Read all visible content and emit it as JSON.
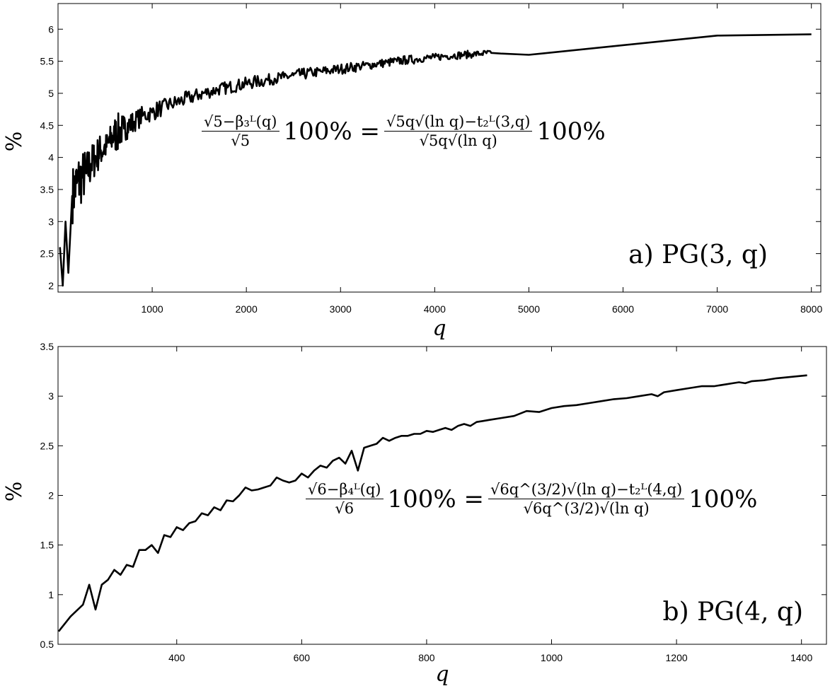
{
  "chart_data": [
    {
      "type": "line",
      "panel_label": "a) PG(3, q)",
      "xlabel": "q",
      "ylabel": "%",
      "xlim": [
        0,
        8100
      ],
      "ylim": [
        1.9,
        6.4
      ],
      "xticks": [
        1000,
        2000,
        3000,
        4000,
        5000,
        6000,
        7000,
        8000
      ],
      "yticks": [
        2,
        2.5,
        3,
        3.5,
        4,
        4.5,
        5,
        5.5,
        6
      ],
      "grid": false,
      "formula": {
        "lhs_num": "√5−β₃ᴸ(q)",
        "lhs_den": "√5",
        "lhs_tail": "100% =",
        "rhs_num": "√5q√(ln q)−t₂ᴸ(3,q)",
        "rhs_den": "√5q√(ln q)",
        "rhs_tail": "100%"
      },
      "series": [
        {
          "x": [
            20,
            50,
            80,
            110,
            150,
            200,
            250,
            300,
            350,
            400,
            450,
            500,
            550,
            600,
            650,
            700,
            750,
            800,
            900,
            1000,
            1100,
            1200,
            1300,
            1400,
            1500,
            1600,
            1700,
            1800,
            1900,
            2000,
            2100,
            2200,
            2300,
            2400,
            2500,
            2600,
            2700,
            2800,
            2900,
            3000,
            3100,
            3200,
            3300,
            3400,
            3500,
            3600,
            3700,
            3800,
            3900,
            4000,
            4100,
            4200,
            4300,
            4400,
            4500,
            4600,
            4700,
            5000,
            7000,
            8000
          ],
          "y": [
            2.6,
            2.0,
            3.0,
            2.2,
            3.4,
            3.6,
            3.7,
            3.75,
            3.9,
            4.0,
            4.1,
            4.15,
            4.25,
            4.35,
            4.4,
            4.45,
            4.5,
            4.55,
            4.65,
            4.7,
            4.78,
            4.83,
            4.88,
            4.93,
            4.98,
            5.02,
            5.06,
            5.09,
            5.12,
            5.15,
            5.18,
            5.2,
            5.23,
            5.25,
            5.28,
            5.3,
            5.32,
            5.34,
            5.36,
            5.38,
            5.4,
            5.42,
            5.44,
            5.46,
            5.48,
            5.5,
            5.52,
            5.53,
            5.55,
            5.56,
            5.58,
            5.59,
            5.6,
            5.61,
            5.62,
            5.63,
            5.62,
            5.6,
            5.9,
            5.92
          ],
          "noise": [
            0,
            0,
            0,
            0,
            0.45,
            0.45,
            0.4,
            0.35,
            0.3,
            0.28,
            0.25,
            0.22,
            0.25,
            0.3,
            0.25,
            0.2,
            0.18,
            0.16,
            0.14,
            0.14,
            0.12,
            0.12,
            0.12,
            0.11,
            0.11,
            0.1,
            0.1,
            0.1,
            0.1,
            0.1,
            0.1,
            0.09,
            0.09,
            0.09,
            0.09,
            0.09,
            0.08,
            0.08,
            0.08,
            0.08,
            0.08,
            0.07,
            0.07,
            0.07,
            0.07,
            0.07,
            0.07,
            0.06,
            0.06,
            0.06,
            0.06,
            0.06,
            0.06,
            0.05,
            0.05,
            0.05,
            0,
            0,
            0,
            0
          ]
        }
      ]
    },
    {
      "type": "line",
      "panel_label": "b) PG(4, q)",
      "xlabel": "q",
      "ylabel": "%",
      "xlim": [
        210,
        1440
      ],
      "ylim": [
        0.5,
        3.5
      ],
      "xticks": [
        400,
        600,
        800,
        1000,
        1200,
        1400
      ],
      "yticks": [
        0.5,
        1,
        1.5,
        2,
        2.5,
        3,
        3.5
      ],
      "grid": false,
      "formula": {
        "lhs_num": "√6−β₄ᴸ(q)",
        "lhs_den": "√6",
        "lhs_tail": "100% =",
        "rhs_num": "√6q^(3/2)√(ln q)−t₂ᴸ(4,q)",
        "rhs_den": "√6q^(3/2)√(ln q)",
        "rhs_tail": "100%"
      },
      "series": [
        {
          "x": [
            211,
            230,
            250,
            260,
            270,
            280,
            290,
            300,
            310,
            320,
            330,
            340,
            350,
            360,
            370,
            380,
            390,
            400,
            410,
            420,
            430,
            440,
            450,
            460,
            470,
            480,
            490,
            500,
            510,
            520,
            530,
            540,
            550,
            560,
            570,
            580,
            590,
            600,
            610,
            620,
            630,
            640,
            650,
            660,
            670,
            680,
            690,
            700,
            710,
            720,
            730,
            740,
            750,
            760,
            770,
            780,
            790,
            800,
            810,
            820,
            830,
            840,
            850,
            860,
            870,
            880,
            890,
            900,
            920,
            940,
            960,
            980,
            1000,
            1020,
            1040,
            1060,
            1080,
            1100,
            1120,
            1140,
            1160,
            1170,
            1180,
            1200,
            1220,
            1240,
            1260,
            1280,
            1290,
            1300,
            1310,
            1320,
            1340,
            1360,
            1409
          ],
          "y": [
            0.63,
            0.78,
            0.9,
            1.1,
            0.85,
            1.1,
            1.15,
            1.25,
            1.2,
            1.3,
            1.28,
            1.45,
            1.45,
            1.5,
            1.42,
            1.6,
            1.58,
            1.68,
            1.65,
            1.72,
            1.74,
            1.82,
            1.8,
            1.88,
            1.85,
            1.95,
            1.94,
            2.0,
            2.08,
            2.05,
            2.06,
            2.08,
            2.1,
            2.18,
            2.15,
            2.13,
            2.15,
            2.22,
            2.18,
            2.25,
            2.3,
            2.28,
            2.35,
            2.38,
            2.32,
            2.45,
            2.25,
            2.48,
            2.5,
            2.52,
            2.58,
            2.55,
            2.58,
            2.6,
            2.6,
            2.62,
            2.62,
            2.65,
            2.64,
            2.66,
            2.68,
            2.66,
            2.7,
            2.72,
            2.7,
            2.74,
            2.75,
            2.76,
            2.78,
            2.8,
            2.85,
            2.84,
            2.88,
            2.9,
            2.91,
            2.93,
            2.95,
            2.97,
            2.98,
            3.0,
            3.02,
            3.0,
            3.04,
            3.06,
            3.08,
            3.1,
            3.1,
            3.12,
            3.13,
            3.14,
            3.13,
            3.15,
            3.16,
            3.18,
            3.21
          ]
        }
      ]
    }
  ]
}
